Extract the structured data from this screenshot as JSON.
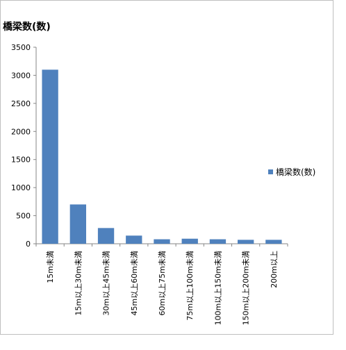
{
  "chart_data": {
    "type": "bar",
    "ylabel": "橋梁数(数)",
    "categories": [
      "15m未満",
      "15m以上30m未満",
      "30m以上45m未満",
      "45m以上60m未満",
      "60m以上75m未満",
      "75m以上100m未満",
      "100m以上150m未満",
      "150m以上200m未満",
      "200m以上"
    ],
    "series": [
      {
        "name": "橋梁数(数)",
        "values": [
          3100,
          700,
          280,
          145,
          80,
          90,
          80,
          70,
          70
        ],
        "color": "#4f81bd"
      }
    ],
    "ylim": [
      0,
      3500
    ],
    "yticks": [
      0,
      500,
      1000,
      1500,
      2000,
      2500,
      3000,
      3500
    ],
    "grid": false,
    "legend_position": "right"
  }
}
